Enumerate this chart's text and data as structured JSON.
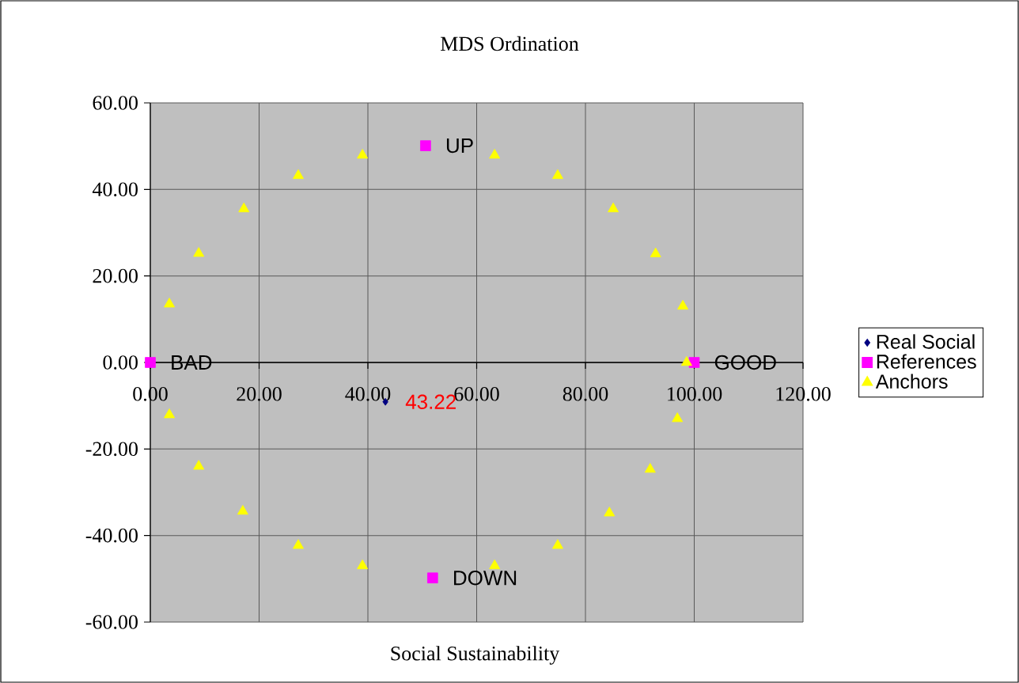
{
  "chart_data": {
    "type": "scatter",
    "title": "MDS Ordination",
    "xlabel": "Social Sustainability",
    "xlim": [
      0,
      120
    ],
    "ylim": [
      -60,
      60
    ],
    "xticks": [
      {
        "value": 0,
        "label": "0.00"
      },
      {
        "value": 20,
        "label": "20.00"
      },
      {
        "value": 40,
        "label": "40.00"
      },
      {
        "value": 60,
        "label": "60.00"
      },
      {
        "value": 80,
        "label": "80.00"
      },
      {
        "value": 100,
        "label": "100.00"
      },
      {
        "value": 120,
        "label": "120.00"
      }
    ],
    "yticks": [
      {
        "value": -60,
        "label": "-60.00"
      },
      {
        "value": -40,
        "label": "-40.00"
      },
      {
        "value": -20,
        "label": "-20.00"
      },
      {
        "value": 0,
        "label": "0.00"
      },
      {
        "value": 20,
        "label": "20.00"
      },
      {
        "value": 40,
        "label": "40.00"
      },
      {
        "value": 60,
        "label": "60.00"
      }
    ],
    "grid": true,
    "legend": "right",
    "series": [
      {
        "name": "Real Social",
        "color": "#000080",
        "marker": "diamond",
        "x": [
          43.22
        ],
        "values": [
          -9.1
        ]
      },
      {
        "name": "References",
        "color": "#ff00ff",
        "marker": "square",
        "x": [
          0,
          100,
          50.6,
          51.9
        ],
        "values": [
          0,
          0,
          50.1,
          -49.8
        ]
      },
      {
        "name": "Anchors",
        "color": "#ffff00",
        "marker": "triangle",
        "x": [
          3.5,
          8.9,
          17.2,
          27.2,
          39.0,
          63.3,
          74.9,
          85.1,
          92.9,
          97.9,
          98.6,
          96.9,
          91.9,
          84.4,
          74.9,
          63.3,
          39.0,
          27.2,
          17.0,
          8.9,
          3.5
        ],
        "values": [
          13.5,
          25.2,
          35.5,
          43.2,
          47.9,
          47.9,
          43.2,
          35.5,
          25.1,
          13.0,
          0,
          -13.0,
          -24.7,
          -34.8,
          -42.3,
          -47.0,
          -47.0,
          -42.3,
          -34.4,
          -24.0,
          -12.1
        ]
      }
    ],
    "annotations": [
      {
        "text": "43.22",
        "x": 43.22,
        "y": -9.1
      },
      {
        "text": "UP",
        "x": 50.6,
        "y": 50.1
      },
      {
        "text": "DOWN",
        "x": 51.9,
        "y": -49.8
      },
      {
        "text": "BAD",
        "x": 0,
        "y": 0
      },
      {
        "text": "GOOD",
        "x": 100,
        "y": 0
      }
    ]
  }
}
